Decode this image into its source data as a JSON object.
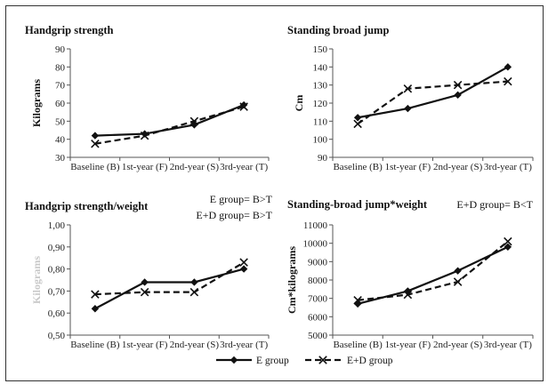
{
  "chart_data": [
    {
      "type": "line",
      "title": "Handgrip strength",
      "ylabel": "Kilograms",
      "ylabel_faint": false,
      "categories": [
        "Baseline (B)",
        "1st-year (F)",
        "2nd-year (S)",
        "3rd-year (T)"
      ],
      "ylim": [
        30,
        90
      ],
      "ystep": 10,
      "tick_decimals": 0,
      "annotations": [],
      "series": [
        {
          "name": "E group",
          "values": [
            42,
            43,
            48,
            59
          ]
        },
        {
          "name": "E+D group",
          "values": [
            37.5,
            42,
            50,
            58
          ]
        }
      ]
    },
    {
      "type": "line",
      "title": "Standing broad jump",
      "ylabel": "Cm",
      "ylabel_faint": false,
      "categories": [
        "Baseline (B)",
        "1st-year (F)",
        "2nd-year (S)",
        "3rd-year (T)"
      ],
      "ylim": [
        90,
        150
      ],
      "ystep": 10,
      "tick_decimals": 0,
      "annotations": [],
      "series": [
        {
          "name": "E group",
          "values": [
            112,
            117,
            124.5,
            140
          ]
        },
        {
          "name": "E+D group",
          "values": [
            108.5,
            128,
            130,
            132
          ]
        }
      ]
    },
    {
      "type": "line",
      "title": "Handgrip strength/weight",
      "ylabel": "Kilograms",
      "ylabel_faint": true,
      "categories": [
        "Baseline (B)",
        "1st-year (F)",
        "2nd-year (S)",
        "3rd-year (T)"
      ],
      "ylim": [
        0.5,
        1.0
      ],
      "ystep": 0.1,
      "tick_decimals": 2,
      "annotations": [
        "E group= B>T",
        "E+D group= B>T"
      ],
      "series": [
        {
          "name": "E group",
          "values": [
            0.62,
            0.74,
            0.74,
            0.8
          ]
        },
        {
          "name": "E+D group",
          "values": [
            0.685,
            0.695,
            0.695,
            0.83
          ]
        }
      ]
    },
    {
      "type": "line",
      "title": "Standing-broad jump*weight",
      "ylabel": "Cm*kilograms",
      "ylabel_faint": false,
      "categories": [
        "Baseline (B)",
        "1st-year (F)",
        "2nd-year (S)",
        "3rd-year (T)"
      ],
      "ylim": [
        5000,
        11000
      ],
      "ystep": 1000,
      "tick_decimals": 0,
      "annotations": [
        "E+D group= B<T"
      ],
      "series": [
        {
          "name": "E group",
          "values": [
            6700,
            7400,
            8500,
            9800
          ]
        },
        {
          "name": "E+D group",
          "values": [
            6900,
            7200,
            7900,
            10100
          ]
        }
      ]
    }
  ],
  "legend": {
    "placement": "bottom",
    "items": [
      {
        "name": "E group",
        "style": "solid-diamond"
      },
      {
        "name": "E+D group",
        "style": "dashed-x"
      }
    ]
  }
}
